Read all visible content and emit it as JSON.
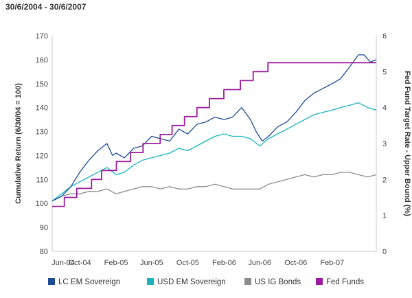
{
  "chart_data": {
    "type": "line",
    "subtitle": "30/6/2004 - 30/6/2007",
    "ylabel": "Cumulative Return (6/30/04 = 100)",
    "y2label": "Fed Fund Target Rate - Upper Bound (%)",
    "ylim": [
      80,
      170
    ],
    "y_ticks": [
      80,
      90,
      100,
      110,
      120,
      130,
      140,
      150,
      160,
      170
    ],
    "y2lim": [
      0,
      6
    ],
    "y2_ticks": [
      0,
      1,
      2,
      3,
      4,
      5,
      6
    ],
    "xlim": [
      "2004-06-30",
      "2007-06-30"
    ],
    "x_ticks": [
      {
        "date": "2004-06-01",
        "label": "Jun-04"
      },
      {
        "date": "2004-10-01",
        "label": "Oct-04"
      },
      {
        "date": "2005-02-01",
        "label": "Feb-05"
      },
      {
        "date": "2005-06-01",
        "label": "Jun-05"
      },
      {
        "date": "2005-10-01",
        "label": "Oct-05"
      },
      {
        "date": "2006-02-01",
        "label": "Feb-06"
      },
      {
        "date": "2006-06-01",
        "label": "Jun-06"
      },
      {
        "date": "2006-10-01",
        "label": "Oct-06"
      },
      {
        "date": "2007-02-01",
        "label": "Feb-07"
      }
    ],
    "grid": false,
    "legend_position": "bottom",
    "series": [
      {
        "name": "LC EM Sovereign",
        "color": "#1c4b94",
        "axis": "left",
        "points": [
          [
            "2004-06-30",
            101
          ],
          [
            "2004-08-01",
            103
          ],
          [
            "2004-09-01",
            107
          ],
          [
            "2004-10-01",
            113
          ],
          [
            "2004-11-01",
            118
          ],
          [
            "2004-12-01",
            122
          ],
          [
            "2005-01-01",
            125
          ],
          [
            "2005-01-20",
            120
          ],
          [
            "2005-02-01",
            121
          ],
          [
            "2005-03-01",
            119
          ],
          [
            "2005-04-01",
            123
          ],
          [
            "2005-05-01",
            124
          ],
          [
            "2005-06-01",
            128
          ],
          [
            "2005-07-01",
            127
          ],
          [
            "2005-08-01",
            126
          ],
          [
            "2005-09-01",
            131
          ],
          [
            "2005-10-01",
            129
          ],
          [
            "2005-11-01",
            133
          ],
          [
            "2005-12-01",
            134
          ],
          [
            "2006-01-01",
            136
          ],
          [
            "2006-02-01",
            135
          ],
          [
            "2006-03-01",
            136
          ],
          [
            "2006-04-01",
            140
          ],
          [
            "2006-05-01",
            135
          ],
          [
            "2006-05-20",
            130
          ],
          [
            "2006-06-10",
            126
          ],
          [
            "2006-07-01",
            128
          ],
          [
            "2006-08-01",
            132
          ],
          [
            "2006-09-01",
            134
          ],
          [
            "2006-10-01",
            138
          ],
          [
            "2006-11-01",
            143
          ],
          [
            "2006-12-01",
            146
          ],
          [
            "2007-01-01",
            148
          ],
          [
            "2007-02-01",
            150
          ],
          [
            "2007-03-01",
            152
          ],
          [
            "2007-04-01",
            157
          ],
          [
            "2007-05-01",
            162
          ],
          [
            "2007-05-20",
            162
          ],
          [
            "2007-06-10",
            159
          ],
          [
            "2007-06-30",
            160
          ]
        ]
      },
      {
        "name": "USD EM Sovereign",
        "color": "#1ab3bd",
        "axis": "left",
        "points": [
          [
            "2004-06-30",
            101
          ],
          [
            "2004-08-01",
            104
          ],
          [
            "2004-09-01",
            107
          ],
          [
            "2004-10-01",
            109
          ],
          [
            "2004-11-01",
            111
          ],
          [
            "2004-12-01",
            113
          ],
          [
            "2005-01-01",
            115
          ],
          [
            "2005-02-01",
            112
          ],
          [
            "2005-03-01",
            113
          ],
          [
            "2005-04-01",
            116
          ],
          [
            "2005-05-01",
            118
          ],
          [
            "2005-06-01",
            119
          ],
          [
            "2005-07-01",
            120
          ],
          [
            "2005-08-01",
            121
          ],
          [
            "2005-09-01",
            123
          ],
          [
            "2005-10-01",
            122
          ],
          [
            "2005-11-01",
            124
          ],
          [
            "2005-12-01",
            126
          ],
          [
            "2006-01-01",
            128
          ],
          [
            "2006-02-01",
            129
          ],
          [
            "2006-03-01",
            128
          ],
          [
            "2006-04-01",
            128
          ],
          [
            "2006-05-01",
            127
          ],
          [
            "2006-06-01",
            124
          ],
          [
            "2006-07-01",
            127
          ],
          [
            "2006-08-01",
            129
          ],
          [
            "2006-09-01",
            131
          ],
          [
            "2006-10-01",
            133
          ],
          [
            "2006-11-01",
            135
          ],
          [
            "2006-12-01",
            137
          ],
          [
            "2007-01-01",
            138
          ],
          [
            "2007-02-01",
            139
          ],
          [
            "2007-03-01",
            140
          ],
          [
            "2007-04-01",
            141
          ],
          [
            "2007-05-01",
            142
          ],
          [
            "2007-06-01",
            140
          ],
          [
            "2007-06-30",
            139
          ]
        ]
      },
      {
        "name": "US IG Bonds",
        "color": "#8c8c8c",
        "axis": "left",
        "points": [
          [
            "2004-06-30",
            101
          ],
          [
            "2004-08-01",
            103
          ],
          [
            "2004-09-01",
            104
          ],
          [
            "2004-10-01",
            104
          ],
          [
            "2004-11-01",
            105
          ],
          [
            "2004-12-01",
            105
          ],
          [
            "2005-01-01",
            106
          ],
          [
            "2005-02-01",
            104
          ],
          [
            "2005-03-01",
            105
          ],
          [
            "2005-04-01",
            106
          ],
          [
            "2005-05-01",
            107
          ],
          [
            "2005-06-01",
            107
          ],
          [
            "2005-07-01",
            106
          ],
          [
            "2005-08-01",
            107
          ],
          [
            "2005-09-01",
            106
          ],
          [
            "2005-10-01",
            106
          ],
          [
            "2005-11-01",
            107
          ],
          [
            "2005-12-01",
            107
          ],
          [
            "2006-01-01",
            108
          ],
          [
            "2006-02-01",
            107
          ],
          [
            "2006-03-01",
            106
          ],
          [
            "2006-04-01",
            106
          ],
          [
            "2006-05-01",
            106
          ],
          [
            "2006-06-01",
            106
          ],
          [
            "2006-07-01",
            108
          ],
          [
            "2006-08-01",
            109
          ],
          [
            "2006-09-01",
            110
          ],
          [
            "2006-10-01",
            111
          ],
          [
            "2006-11-01",
            112
          ],
          [
            "2006-12-01",
            111
          ],
          [
            "2007-01-01",
            112
          ],
          [
            "2007-02-01",
            112
          ],
          [
            "2007-03-01",
            113
          ],
          [
            "2007-04-01",
            113
          ],
          [
            "2007-05-01",
            112
          ],
          [
            "2007-06-01",
            111
          ],
          [
            "2007-06-30",
            112
          ]
        ]
      },
      {
        "name": "Fed Funds",
        "color": "#9b1b9e",
        "axis": "right",
        "step": true,
        "points": [
          [
            "2004-06-30",
            1.25
          ],
          [
            "2004-08-10",
            1.5
          ],
          [
            "2004-09-21",
            1.75
          ],
          [
            "2004-11-10",
            2.0
          ],
          [
            "2004-12-14",
            2.25
          ],
          [
            "2005-02-02",
            2.5
          ],
          [
            "2005-03-22",
            2.75
          ],
          [
            "2005-05-03",
            3.0
          ],
          [
            "2005-06-30",
            3.25
          ],
          [
            "2005-08-09",
            3.5
          ],
          [
            "2005-09-20",
            3.75
          ],
          [
            "2005-11-01",
            4.0
          ],
          [
            "2005-12-13",
            4.25
          ],
          [
            "2006-01-31",
            4.5
          ],
          [
            "2006-03-28",
            4.75
          ],
          [
            "2006-05-10",
            5.0
          ],
          [
            "2006-06-29",
            5.25
          ],
          [
            "2007-06-30",
            5.25
          ]
        ]
      }
    ]
  }
}
